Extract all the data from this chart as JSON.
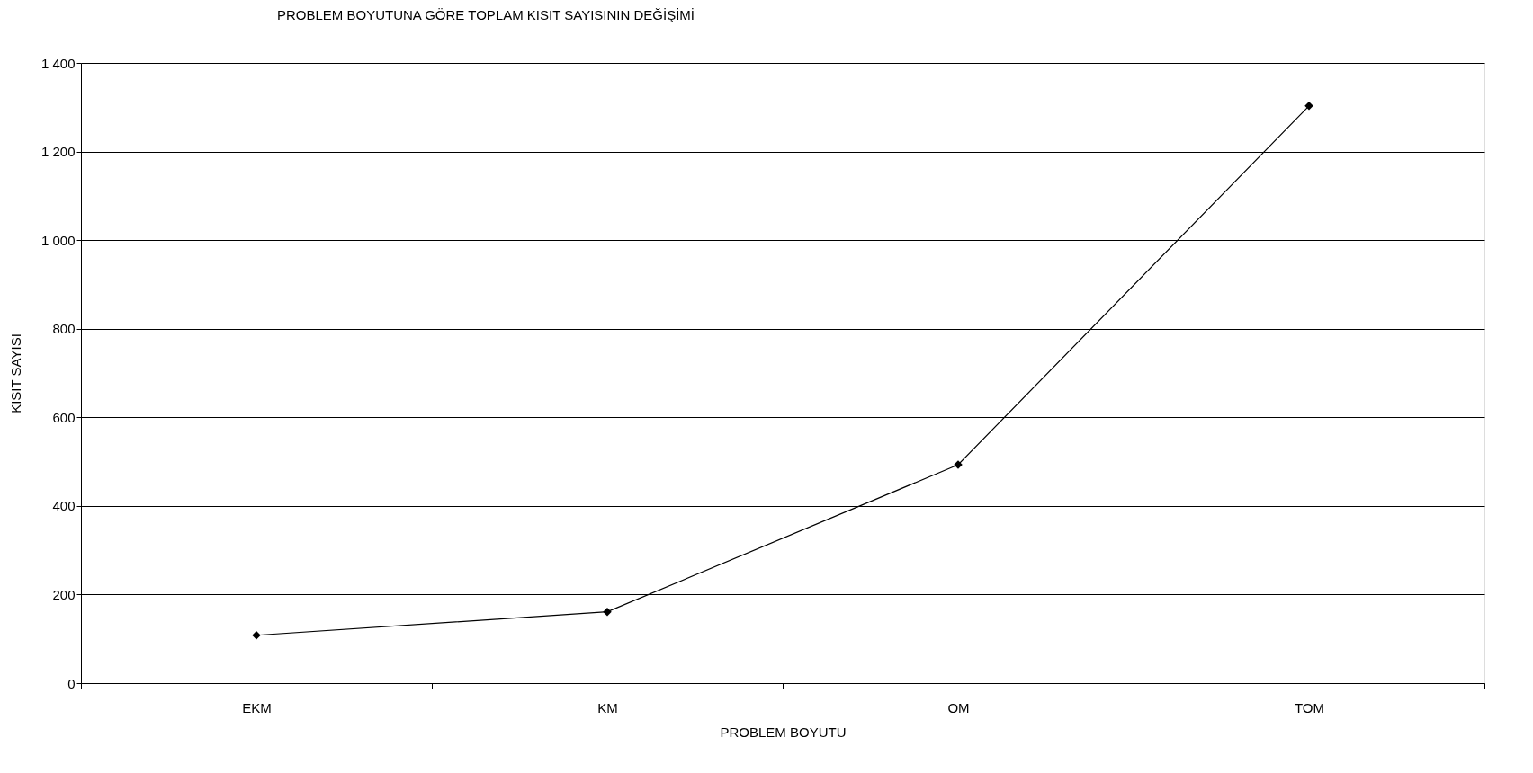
{
  "chart_data": {
    "type": "line",
    "title": "PROBLEM BOYUTUNA GÖRE TOPLAM KISIT SAYISININ DEĞİŞİMİ",
    "xlabel": "PROBLEM BOYUTU",
    "ylabel": "KISIT SAYISI",
    "categories": [
      "EKM",
      "KM",
      "OM",
      "TOM"
    ],
    "series": [
      {
        "color": "#000000",
        "values": [
          108,
          161,
          493,
          1303
        ]
      }
    ],
    "ylim": [
      0,
      1400
    ],
    "yticks": [
      0,
      200,
      400,
      600,
      800,
      {
        "value": 1000,
        "label": "1 000"
      },
      {
        "value": 1200,
        "label": "1 200"
      },
      {
        "value": 1400,
        "label": "1 400"
      }
    ],
    "grid": "y",
    "legend": false,
    "marker": "diamond",
    "line_style": "solid"
  }
}
